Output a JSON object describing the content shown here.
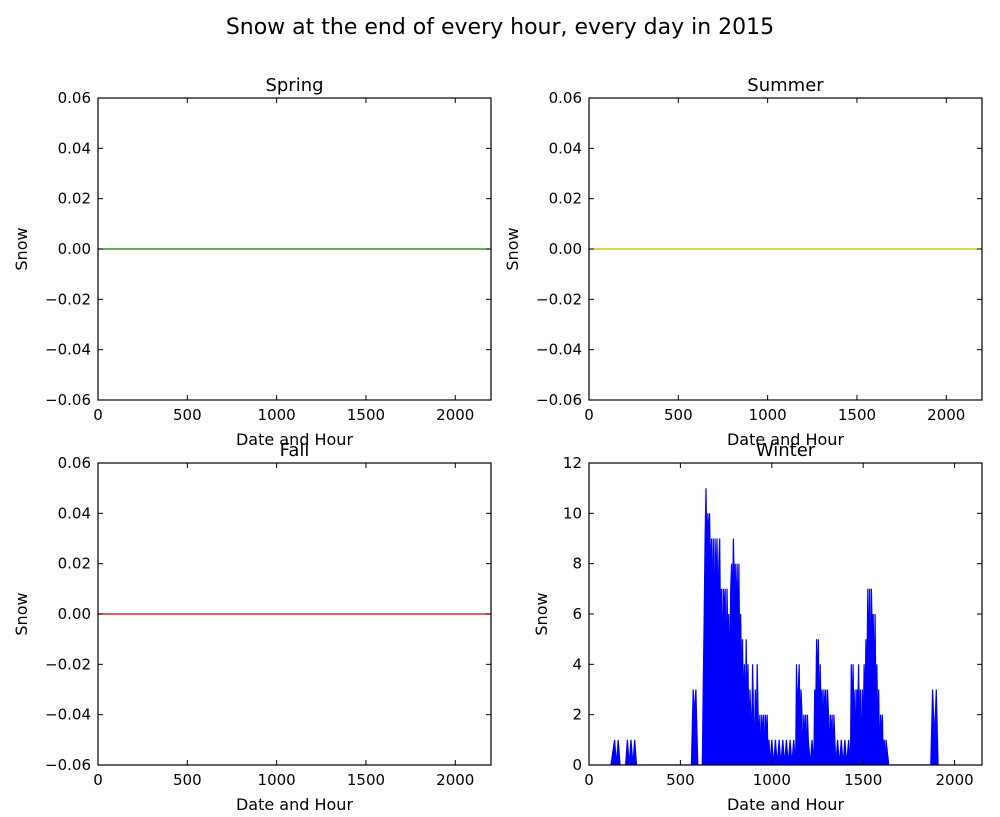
{
  "figure": {
    "title": "Snow at the end of every hour, every day in 2015"
  },
  "chart_data": [
    {
      "type": "line",
      "title": "Spring",
      "xlabel": "Date and Hour",
      "ylabel": "Snow",
      "xlim": [
        0,
        2200
      ],
      "ylim": [
        -0.06,
        0.06
      ],
      "x_ticks": [
        0,
        500,
        1000,
        1500,
        2000
      ],
      "y_ticks": [
        -0.06,
        -0.04,
        -0.02,
        0.0,
        0.02,
        0.04,
        0.06
      ],
      "tick_decimals": 2,
      "color": "#008000",
      "series": [
        {
          "values": [
            [
              0,
              0
            ],
            [
              2200,
              0
            ]
          ]
        }
      ]
    },
    {
      "type": "line",
      "title": "Summer",
      "xlabel": "Date and Hour",
      "ylabel": "Snow",
      "xlim": [
        0,
        2200
      ],
      "ylim": [
        -0.06,
        0.06
      ],
      "x_ticks": [
        0,
        500,
        1000,
        1500,
        2000
      ],
      "y_ticks": [
        -0.06,
        -0.04,
        -0.02,
        0.0,
        0.02,
        0.04,
        0.06
      ],
      "tick_decimals": 2,
      "color": "#bfbf00",
      "series": [
        {
          "values": [
            [
              0,
              0
            ],
            [
              2200,
              0
            ]
          ]
        }
      ]
    },
    {
      "type": "line",
      "title": "Fall",
      "xlabel": "Date and Hour",
      "ylabel": "Snow",
      "xlim": [
        0,
        2200
      ],
      "ylim": [
        -0.06,
        0.06
      ],
      "x_ticks": [
        0,
        500,
        1000,
        1500,
        2000
      ],
      "y_ticks": [
        -0.06,
        -0.04,
        -0.02,
        0.0,
        0.02,
        0.04,
        0.06
      ],
      "tick_decimals": 2,
      "color": "#cc0000",
      "series": [
        {
          "values": [
            [
              0,
              0
            ],
            [
              2200,
              0
            ]
          ]
        }
      ]
    },
    {
      "type": "area",
      "title": "Winter",
      "xlabel": "Date and Hour",
      "ylabel": "Snow",
      "xlim": [
        0,
        2150
      ],
      "ylim": [
        0,
        12
      ],
      "x_ticks": [
        0,
        500,
        1000,
        1500,
        2000
      ],
      "y_ticks": [
        0,
        2,
        4,
        6,
        8,
        10,
        12
      ],
      "tick_decimals": 0,
      "color": "#0000ff",
      "series": [
        {
          "values": [
            [
              120,
              0
            ],
            [
              140,
              1
            ],
            [
              150,
              0
            ],
            [
              160,
              1
            ],
            [
              170,
              0
            ],
            [
              200,
              0
            ],
            [
              210,
              1
            ],
            [
              220,
              0
            ],
            [
              230,
              1
            ],
            [
              240,
              0
            ],
            [
              250,
              1
            ],
            [
              260,
              0
            ],
            [
              560,
              0
            ],
            [
              570,
              3
            ],
            [
              575,
              2
            ],
            [
              585,
              3
            ],
            [
              595,
              0
            ],
            [
              620,
              0
            ],
            [
              625,
              3
            ],
            [
              630,
              6
            ],
            [
              635,
              9
            ],
            [
              640,
              11
            ],
            [
              645,
              8
            ],
            [
              650,
              10
            ],
            [
              655,
              9
            ],
            [
              660,
              10
            ],
            [
              665,
              7
            ],
            [
              670,
              9
            ],
            [
              675,
              6
            ],
            [
              680,
              9
            ],
            [
              685,
              5
            ],
            [
              690,
              9
            ],
            [
              695,
              7
            ],
            [
              700,
              9
            ],
            [
              705,
              6
            ],
            [
              710,
              8
            ],
            [
              715,
              9
            ],
            [
              720,
              5
            ],
            [
              725,
              7
            ],
            [
              730,
              4
            ],
            [
              735,
              7
            ],
            [
              740,
              6
            ],
            [
              745,
              7
            ],
            [
              750,
              3
            ],
            [
              755,
              7
            ],
            [
              760,
              5
            ],
            [
              765,
              6
            ],
            [
              770,
              3
            ],
            [
              775,
              7
            ],
            [
              780,
              8
            ],
            [
              785,
              6
            ],
            [
              790,
              9
            ],
            [
              795,
              7
            ],
            [
              800,
              8
            ],
            [
              805,
              6
            ],
            [
              810,
              8
            ],
            [
              815,
              5
            ],
            [
              820,
              8
            ],
            [
              825,
              4
            ],
            [
              830,
              6
            ],
            [
              835,
              3
            ],
            [
              840,
              5
            ],
            [
              845,
              2
            ],
            [
              850,
              4
            ],
            [
              855,
              1
            ],
            [
              860,
              5
            ],
            [
              865,
              2
            ],
            [
              870,
              4
            ],
            [
              875,
              1
            ],
            [
              880,
              3
            ],
            [
              885,
              2
            ],
            [
              890,
              1
            ],
            [
              895,
              4
            ],
            [
              900,
              2
            ],
            [
              905,
              0
            ],
            [
              910,
              3
            ],
            [
              915,
              1
            ],
            [
              920,
              4
            ],
            [
              925,
              2
            ],
            [
              930,
              1
            ],
            [
              935,
              2
            ],
            [
              940,
              0
            ],
            [
              945,
              2
            ],
            [
              950,
              1
            ],
            [
              955,
              2
            ],
            [
              960,
              0
            ],
            [
              965,
              2
            ],
            [
              970,
              1
            ],
            [
              975,
              2
            ],
            [
              980,
              0
            ],
            [
              985,
              1
            ],
            [
              990,
              0
            ],
            [
              1000,
              1
            ],
            [
              1010,
              0
            ],
            [
              1020,
              1
            ],
            [
              1030,
              0
            ],
            [
              1040,
              1
            ],
            [
              1050,
              0
            ],
            [
              1060,
              1
            ],
            [
              1070,
              0
            ],
            [
              1080,
              1
            ],
            [
              1090,
              0
            ],
            [
              1100,
              1
            ],
            [
              1110,
              0
            ],
            [
              1120,
              1
            ],
            [
              1130,
              0
            ],
            [
              1135,
              4
            ],
            [
              1140,
              2
            ],
            [
              1145,
              3
            ],
            [
              1150,
              4
            ],
            [
              1155,
              1
            ],
            [
              1160,
              3
            ],
            [
              1165,
              2
            ],
            [
              1170,
              0
            ],
            [
              1175,
              2
            ],
            [
              1180,
              1
            ],
            [
              1185,
              2
            ],
            [
              1190,
              0
            ],
            [
              1195,
              2
            ],
            [
              1200,
              1
            ],
            [
              1210,
              0
            ],
            [
              1220,
              1
            ],
            [
              1230,
              0
            ],
            [
              1235,
              3
            ],
            [
              1240,
              2
            ],
            [
              1245,
              5
            ],
            [
              1250,
              3
            ],
            [
              1255,
              5
            ],
            [
              1260,
              1
            ],
            [
              1265,
              4
            ],
            [
              1270,
              2
            ],
            [
              1275,
              3
            ],
            [
              1280,
              1
            ],
            [
              1285,
              3
            ],
            [
              1290,
              2
            ],
            [
              1295,
              3
            ],
            [
              1300,
              1
            ],
            [
              1305,
              3
            ],
            [
              1310,
              2
            ],
            [
              1315,
              0
            ],
            [
              1320,
              2
            ],
            [
              1325,
              1
            ],
            [
              1330,
              2
            ],
            [
              1335,
              0
            ],
            [
              1340,
              2
            ],
            [
              1350,
              0
            ],
            [
              1360,
              1
            ],
            [
              1370,
              0
            ],
            [
              1380,
              1
            ],
            [
              1390,
              0
            ],
            [
              1400,
              1
            ],
            [
              1410,
              0
            ],
            [
              1420,
              1
            ],
            [
              1430,
              0
            ],
            [
              1435,
              4
            ],
            [
              1440,
              2
            ],
            [
              1445,
              4
            ],
            [
              1450,
              1
            ],
            [
              1455,
              3
            ],
            [
              1460,
              0
            ],
            [
              1465,
              3
            ],
            [
              1470,
              2
            ],
            [
              1475,
              4
            ],
            [
              1480,
              1
            ],
            [
              1485,
              3
            ],
            [
              1490,
              0
            ],
            [
              1495,
              3
            ],
            [
              1500,
              1
            ],
            [
              1505,
              4
            ],
            [
              1510,
              2
            ],
            [
              1515,
              5
            ],
            [
              1520,
              3
            ],
            [
              1525,
              7
            ],
            [
              1530,
              4
            ],
            [
              1535,
              7
            ],
            [
              1540,
              3
            ],
            [
              1545,
              7
            ],
            [
              1550,
              5
            ],
            [
              1555,
              6
            ],
            [
              1560,
              3
            ],
            [
              1565,
              6
            ],
            [
              1570,
              2
            ],
            [
              1575,
              4
            ],
            [
              1580,
              1
            ],
            [
              1585,
              3
            ],
            [
              1590,
              0
            ],
            [
              1595,
              2
            ],
            [
              1600,
              1
            ],
            [
              1605,
              2
            ],
            [
              1610,
              0
            ],
            [
              1615,
              1
            ],
            [
              1620,
              0
            ],
            [
              1625,
              1
            ],
            [
              1640,
              0
            ],
            [
              1870,
              0
            ],
            [
              1880,
              3
            ],
            [
              1890,
              1
            ],
            [
              1900,
              3
            ],
            [
              1910,
              0
            ]
          ]
        }
      ]
    }
  ]
}
